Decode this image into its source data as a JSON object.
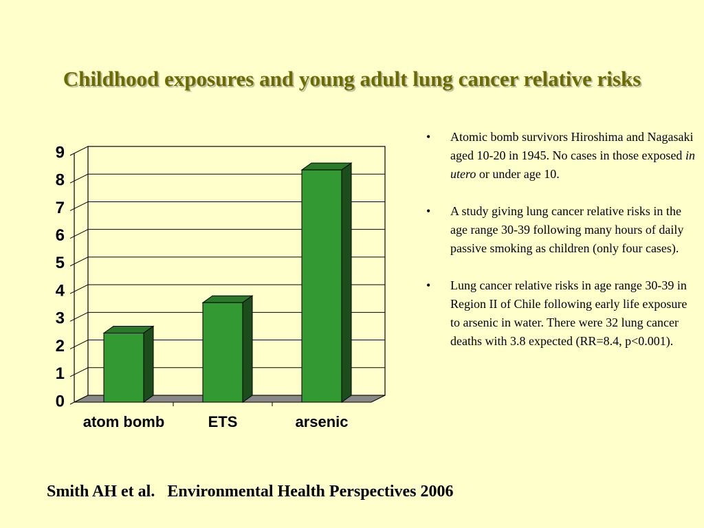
{
  "title": "Childhood exposures and young adult lung cancer relative risks",
  "chart_data": {
    "type": "bar3d",
    "categories": [
      "atom bomb",
      "ETS",
      "arsenic"
    ],
    "values": [
      2.5,
      3.6,
      8.4
    ],
    "color": "#339933",
    "ylim": [
      0,
      9
    ],
    "yticks": [
      0,
      1,
      2,
      3,
      4,
      5,
      6,
      7,
      8,
      9
    ],
    "grid": true
  },
  "bullets": [
    [
      "Atomic bomb survivors Hiroshima and Nagasaki aged 10-20 in 1945. No cases in those exposed ",
      "in utero",
      " or under age 10."
    ],
    [
      "A study giving lung cancer relative risks in the age range 30-39 following many hours of daily passive smoking as children (only four cases)."
    ],
    [
      "Lung cancer relative risks in age range 30-39 in Region II of Chile following early life exposure to arsenic in water. There were 32 lung cancer deaths with 3.8 expected (RR=8.4, p<0.001)."
    ]
  ],
  "citation": "Smith AH et al.   Environmental Health Perspectives 2006"
}
